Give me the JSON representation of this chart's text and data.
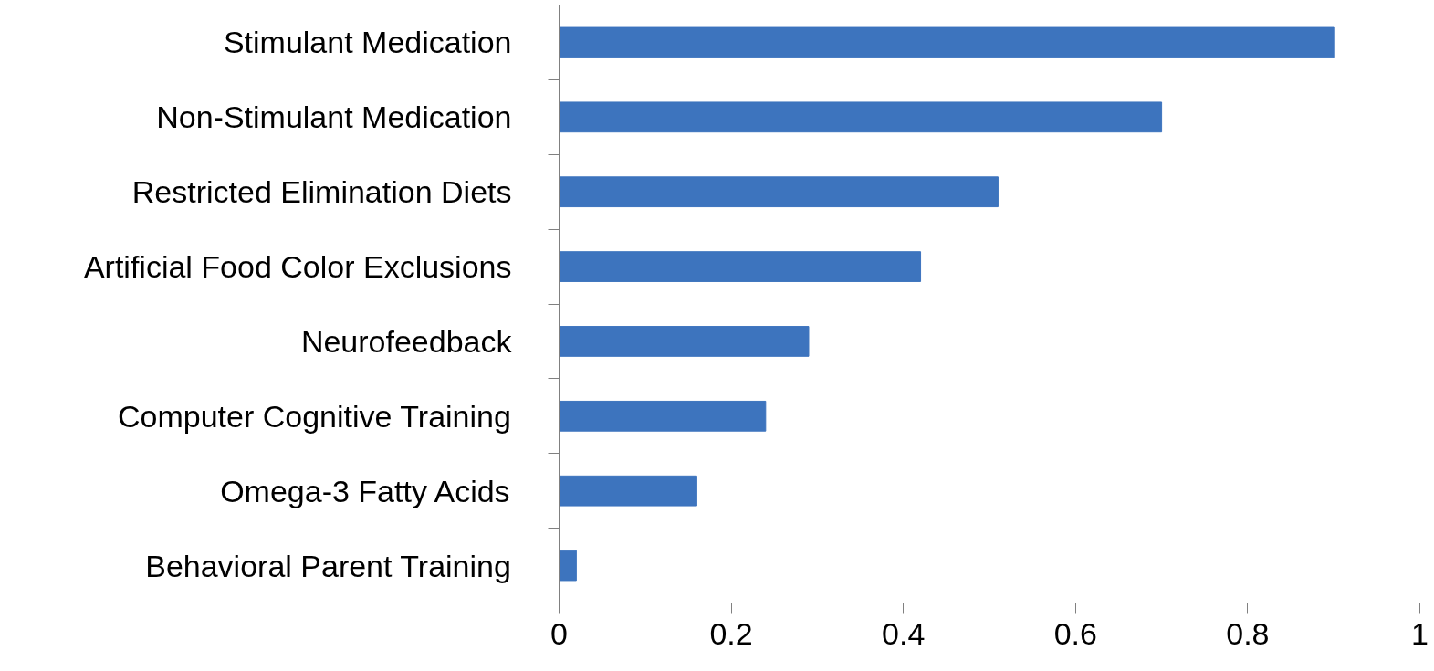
{
  "chart_data": {
    "type": "bar",
    "orientation": "horizontal",
    "categories": [
      "Stimulant Medication",
      "Non-Stimulant Medication",
      "Restricted Elimination Diets",
      "Artificial Food Color Exclusions",
      "Neurofeedback",
      "Computer Cognitive Training",
      "Omega-3 Fatty Acids",
      "Behavioral Parent Training"
    ],
    "values": [
      0.9,
      0.7,
      0.51,
      0.42,
      0.29,
      0.24,
      0.16,
      0.02
    ],
    "color": "#3d74be",
    "xlim": [
      0,
      1
    ],
    "xticks": [
      0,
      0.2,
      0.4,
      0.6,
      0.8,
      1
    ]
  }
}
